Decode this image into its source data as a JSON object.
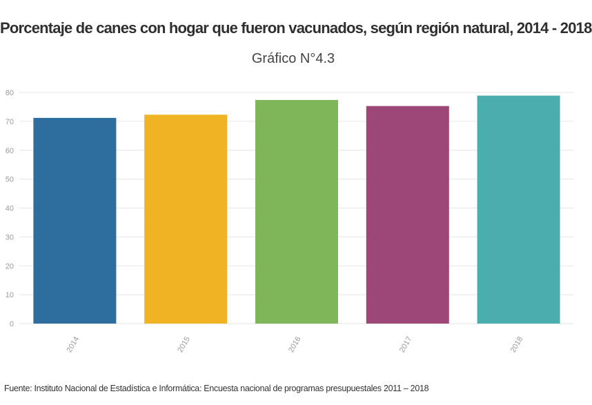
{
  "title": "Porcentaje de canes con hogar que fueron vacunados, según región natural, 2014 - 2018",
  "subtitle": "Gráfico N°4.3",
  "source": "Fuente: Instituto Nacional de Estadística e Informática: Encuesta nacional de programas presupuestales 2011 – 2018",
  "chart_data": {
    "type": "bar",
    "categories": [
      "2014",
      "2015",
      "2016",
      "2017",
      "2018"
    ],
    "values": [
      71.2,
      72.3,
      77.4,
      75.3,
      78.9
    ],
    "colors": [
      "#2e6e9e",
      "#f0b323",
      "#7fb65a",
      "#9c4778",
      "#4badad"
    ],
    "ylim": [
      0,
      80
    ],
    "yticks": [
      0,
      10,
      20,
      30,
      40,
      50,
      60,
      70,
      80
    ],
    "grid": true,
    "legend": "none"
  }
}
